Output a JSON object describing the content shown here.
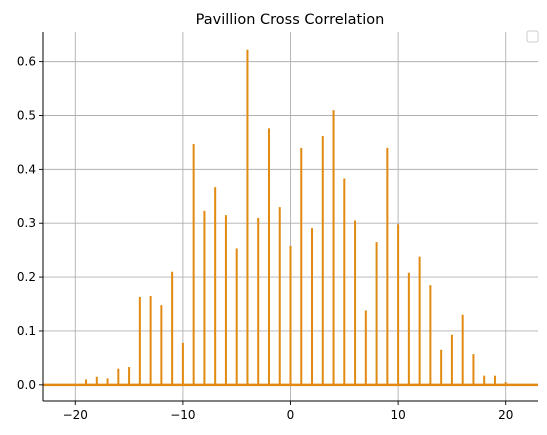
{
  "chart_data": {
    "type": "bar",
    "title": "Pavillion Cross Correlation",
    "xlabel": "",
    "ylabel": "",
    "xlim": [
      -23,
      23
    ],
    "ylim": [
      -0.03,
      0.655
    ],
    "x_ticks": [
      -20,
      -10,
      0,
      10,
      20
    ],
    "y_ticks": [
      0.0,
      0.1,
      0.2,
      0.3,
      0.4,
      0.5,
      0.6
    ],
    "y_tick_labels": [
      "0.0",
      "0.1",
      "0.2",
      "0.3",
      "0.4",
      "0.5",
      "0.6"
    ],
    "x_tick_labels": [
      "−20",
      "−10",
      "0",
      "10",
      "20"
    ],
    "grid": true,
    "legend": "top-right",
    "colors": {
      "bar": "#e08a12",
      "baseline": "#e08a12"
    },
    "lags": [
      -19,
      -18,
      -17,
      -16,
      -15,
      -14,
      -13,
      -12,
      -11,
      -10,
      -9,
      -8,
      -7,
      -6,
      -5,
      -4,
      -3,
      -2,
      -1,
      0,
      1,
      2,
      3,
      4,
      5,
      6,
      7,
      8,
      9,
      10,
      11,
      12,
      13,
      14,
      15,
      16,
      17,
      18,
      19,
      20
    ],
    "values": [
      0.01,
      0.015,
      0.012,
      0.03,
      0.033,
      0.163,
      0.165,
      0.148,
      0.21,
      0.078,
      0.447,
      0.323,
      0.367,
      0.315,
      0.253,
      0.622,
      0.31,
      0.476,
      0.33,
      0.258,
      0.44,
      0.291,
      0.462,
      0.51,
      0.383,
      0.305,
      0.138,
      0.265,
      0.44,
      0.298,
      0.208,
      0.238,
      0.185,
      0.065,
      0.093,
      0.13,
      0.057,
      0.017,
      0.017,
      0.005
    ]
  }
}
